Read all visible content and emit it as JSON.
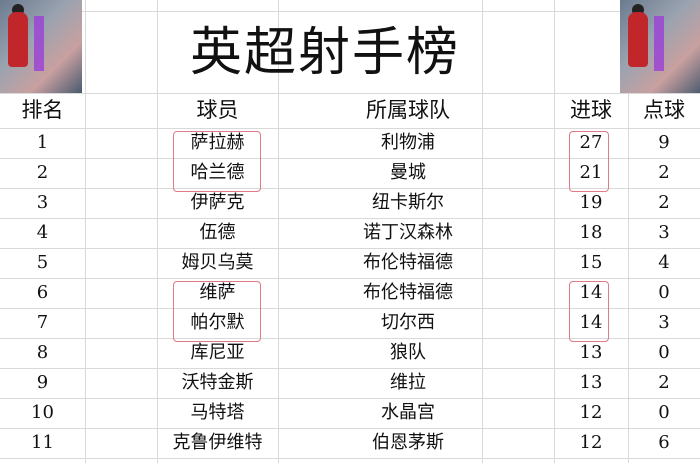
{
  "title": "英超射手榜",
  "headers": {
    "rank": "排名",
    "player": "球员",
    "team": "所属球队",
    "goals": "进球",
    "penalties": "点球"
  },
  "rows": [
    {
      "rank": "1",
      "player": "萨拉赫",
      "team": "利物浦",
      "goals": "27",
      "penalties": "9"
    },
    {
      "rank": "2",
      "player": "哈兰德",
      "team": "曼城",
      "goals": "21",
      "penalties": "2"
    },
    {
      "rank": "3",
      "player": "伊萨克",
      "team": "纽卡斯尔",
      "goals": "19",
      "penalties": "2"
    },
    {
      "rank": "4",
      "player": "伍德",
      "team": "诺丁汉森林",
      "goals": "18",
      "penalties": "3"
    },
    {
      "rank": "5",
      "player": "姆贝乌莫",
      "team": "布伦特福德",
      "goals": "15",
      "penalties": "4"
    },
    {
      "rank": "6",
      "player": "维萨",
      "team": "布伦特福德",
      "goals": "14",
      "penalties": "0"
    },
    {
      "rank": "7",
      "player": "帕尔默",
      "team": "切尔西",
      "goals": "14",
      "penalties": "3"
    },
    {
      "rank": "8",
      "player": "库尼亚",
      "team": "狼队",
      "goals": "13",
      "penalties": "0"
    },
    {
      "rank": "9",
      "player": "沃特金斯",
      "team": "维拉",
      "goals": "13",
      "penalties": "2"
    },
    {
      "rank": "10",
      "player": "马特塔",
      "team": "水晶宫",
      "goals": "12",
      "penalties": "0"
    },
    {
      "rank": "11",
      "player": "克鲁伊维特",
      "team": "伯恩茅斯",
      "goals": "12",
      "penalties": "6"
    }
  ],
  "highlight_color": "#e07a86"
}
